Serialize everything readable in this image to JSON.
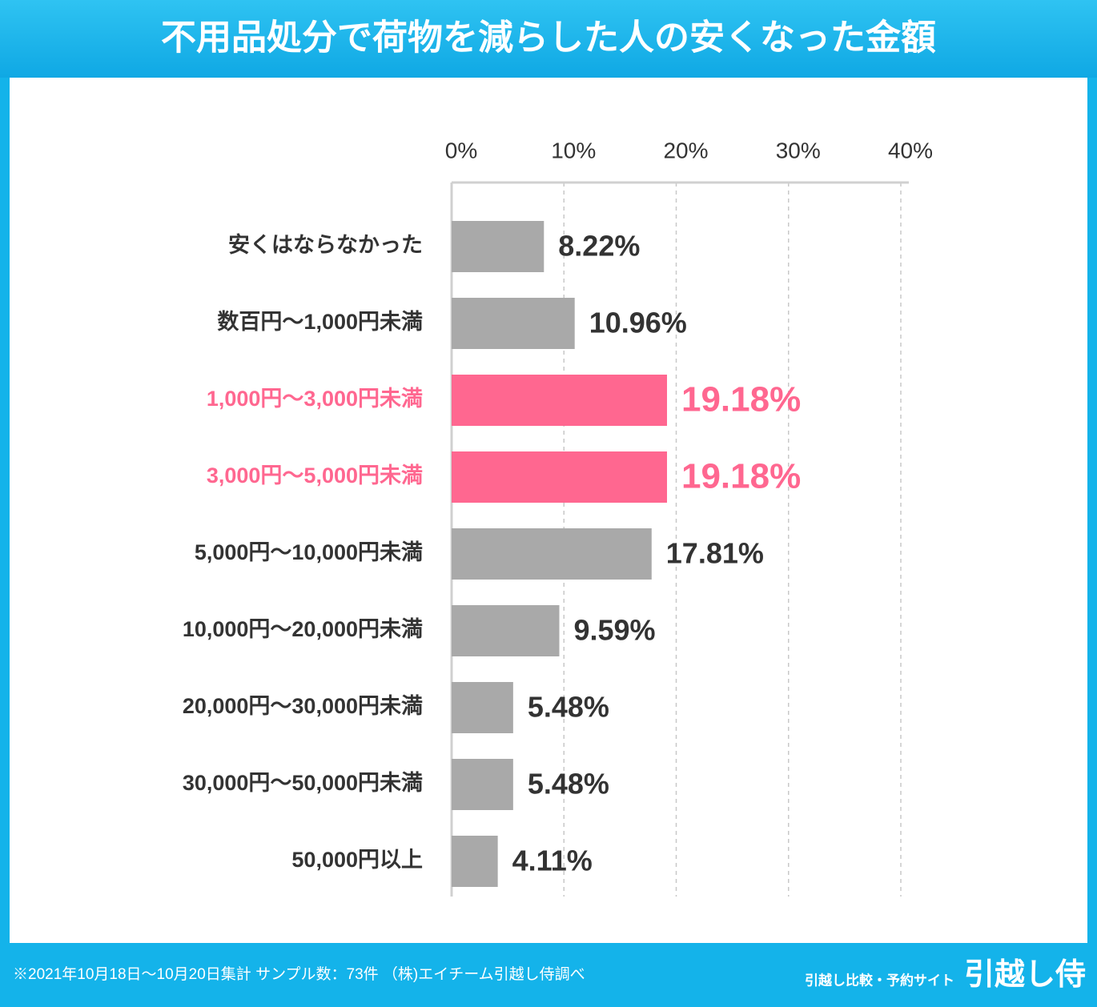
{
  "chart_data": {
    "type": "bar",
    "orientation": "horizontal",
    "title": "不用品処分で荷物を減らした人の安くなった金額",
    "categories": [
      "安くはならなかった",
      "数百円～1,000円未満",
      "1,000円～3,000円未満",
      "3,000円～5,000円未満",
      "5,000円～10,000円未満",
      "10,000円～20,000円未満",
      "20,000円～30,000円未満",
      "30,000円～50,000円未満",
      "50,000円以上"
    ],
    "values": [
      8.22,
      10.96,
      19.18,
      19.18,
      17.81,
      9.59,
      5.48,
      5.48,
      4.11
    ],
    "value_labels": [
      "8.22%",
      "10.96%",
      "19.18%",
      "19.18%",
      "17.81%",
      "9.59%",
      "5.48%",
      "5.48%",
      "4.11%"
    ],
    "color": "#a9a9a9",
    "colors": [
      "#a9a9a9",
      "#a9a9a9",
      "#ff6790",
      "#ff6790",
      "#a9a9a9",
      "#a9a9a9",
      "#a9a9a9",
      "#a9a9a9",
      "#a9a9a9"
    ],
    "xlim": [
      0,
      40
    ],
    "xticks": [
      {
        "value": 0,
        "label": "0%"
      },
      {
        "value": 10,
        "label": "10%"
      },
      {
        "value": 20,
        "label": "20%"
      },
      {
        "value": 30,
        "label": "30%"
      },
      {
        "value": 40,
        "label": "40%"
      }
    ],
    "grid": true
  },
  "footer": {
    "note": "※2021年10月18日～10月20日集計 サンプル数：73件 （株)エイチーム引越し侍調べ",
    "tagline": "引越し比較・予約サイト",
    "brand": "引越し侍"
  }
}
